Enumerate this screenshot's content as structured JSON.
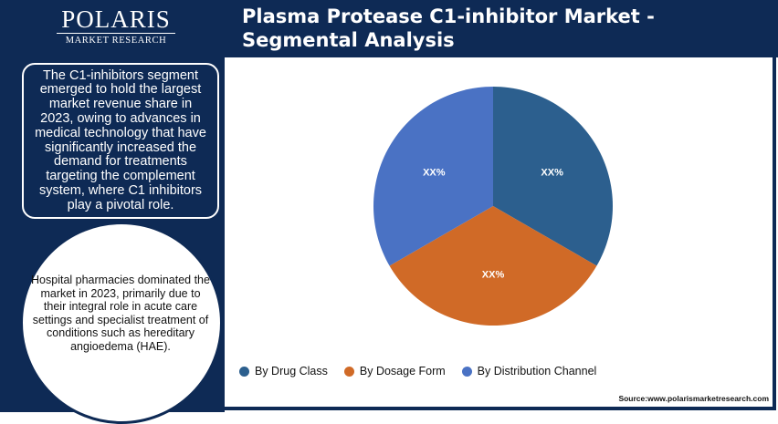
{
  "brand": {
    "name": "POLARIS",
    "subtitle": "MARKET RESEARCH"
  },
  "header": {
    "title": "Plasma Protease C1-inhibitor Market - Segmental Analysis"
  },
  "sidebar": {
    "callout_top": "The C1-inhibitors segment emerged to hold the largest market revenue share in 2023, owing to advances in medical technology that have significantly increased the demand for treatments targeting the complement system, where C1 inhibitors play a pivotal role.",
    "callout_bottom": "Hospital pharmacies dominated the market in 2023, primarily due to their integral role in acute care settings and specialist treatment of conditions such as hereditary angioedema (HAE)."
  },
  "chart_data": {
    "type": "pie",
    "categories": [
      "By Drug Class",
      "By Dosage Form",
      "By Distribution Channel"
    ],
    "values": [
      1,
      1,
      1
    ],
    "data_labels": [
      "XX%",
      "XX%",
      "XX%"
    ],
    "colors": [
      "#2c5f8e",
      "#d06a27",
      "#4a72c4"
    ],
    "legend_position": "bottom"
  },
  "source": "Source:www.polarismarketresearch.com"
}
